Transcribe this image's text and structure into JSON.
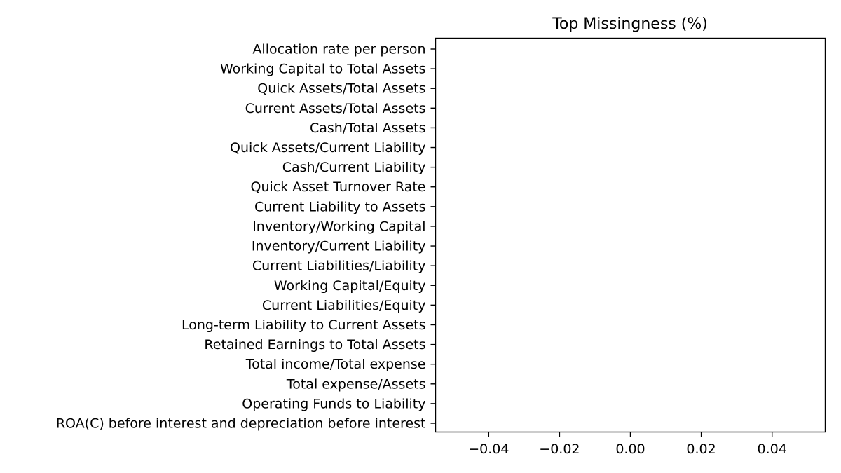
{
  "chart_data": {
    "type": "bar",
    "orientation": "horizontal",
    "title": "Top Missingness (%)",
    "xlabel": "",
    "ylabel": "",
    "xlim": [
      -0.055,
      0.055
    ],
    "xticks": [
      -0.04,
      -0.02,
      0.0,
      0.02,
      0.04
    ],
    "xtick_labels": [
      "−0.04",
      "−0.02",
      "0.00",
      "0.02",
      "0.04"
    ],
    "grid": false,
    "categories": [
      "Allocation rate per person",
      "Working Capital to Total Assets",
      "Quick Assets/Total Assets",
      "Current Assets/Total Assets",
      "Cash/Total Assets",
      "Quick Assets/Current Liability",
      "Cash/Current Liability",
      "Quick Asset Turnover Rate",
      "Current Liability to Assets",
      "Inventory/Working Capital",
      "Inventory/Current Liability",
      "Current Liabilities/Liability",
      "Working Capital/Equity",
      "Current Liabilities/Equity",
      "Long-term Liability to Current Assets",
      "Retained Earnings to Total Assets",
      "Total income/Total expense",
      "Total expense/Assets",
      "Operating Funds to Liability",
      "ROA(C) before interest and depreciation before interest"
    ],
    "values": [
      0,
      0,
      0,
      0,
      0,
      0,
      0,
      0,
      0,
      0,
      0,
      0,
      0,
      0,
      0,
      0,
      0,
      0,
      0,
      0
    ]
  }
}
